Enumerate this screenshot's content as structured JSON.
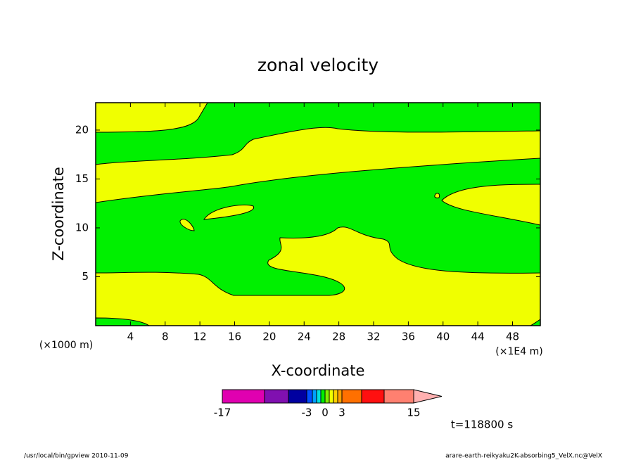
{
  "chart_data": {
    "type": "contour",
    "title": "zonal velocity",
    "x_label": "X-coordinate",
    "y_label": "Z-coordinate",
    "x_unit": "(×1E4 m)",
    "y_unit": "(×1000 m)",
    "xlim": [
      0,
      51.2
    ],
    "ylim": [
      0,
      22.8
    ],
    "xticks": [
      4,
      8,
      12,
      16,
      20,
      24,
      28,
      32,
      36,
      40,
      44,
      48
    ],
    "yticks": [
      5,
      10,
      15,
      20
    ],
    "colorbar": {
      "levels": [
        -17,
        -12,
        -7,
        -3,
        -2.25,
        -1.5,
        -0.75,
        0,
        0.75,
        1.5,
        2.25,
        3,
        6,
        10,
        15
      ],
      "colors": [
        "#e000b0",
        "#8010b0",
        "#0000a0",
        "#0050ff",
        "#00a0ff",
        "#00e0e0",
        "#00f000",
        "#80f000",
        "#f0ff00",
        "#ffd000",
        "#ffa000",
        "#ff7000",
        "#ff1010",
        "#ff8070",
        "#ffb0b0"
      ],
      "ticks": [
        -17,
        -3,
        0,
        3,
        15
      ]
    },
    "annotation": "t=118800 s",
    "footer_left": "/usr/local/bin/gpview  2010-11-09",
    "footer_right": "arare-earth-reikyaku2K-absorbing5_VelX.nc@VelX"
  }
}
